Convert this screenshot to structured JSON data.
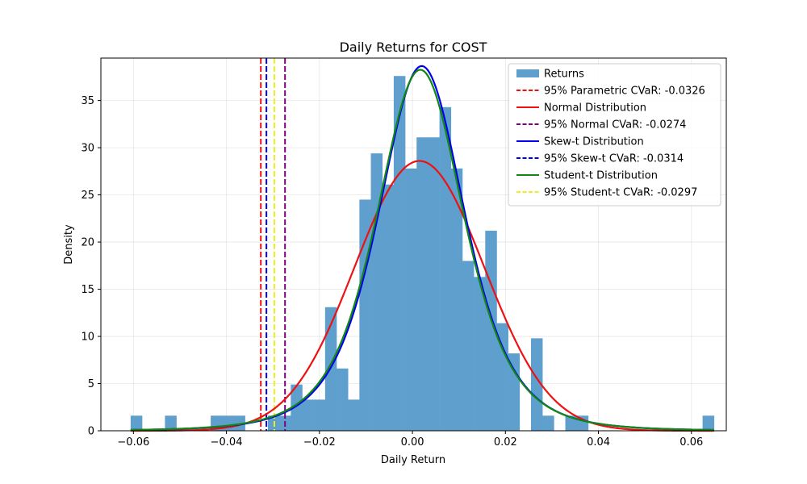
{
  "chart_data": {
    "type": "histogram",
    "title": "Daily Returns for COST",
    "xlabel": "Daily Return",
    "ylabel": "Density",
    "xlim": [
      -0.067,
      0.0675
    ],
    "ylim": [
      0,
      39.5
    ],
    "xticks": [
      -0.06,
      -0.04,
      -0.02,
      0.0,
      0.02,
      0.04,
      0.06
    ],
    "xtick_labels": [
      "−0.06",
      "−0.04",
      "−0.02",
      "0.00",
      "0.02",
      "0.04",
      "0.06"
    ],
    "yticks": [
      0,
      5,
      10,
      15,
      20,
      25,
      30,
      35
    ],
    "ytick_labels": [
      "0",
      "5",
      "10",
      "15",
      "20",
      "25",
      "30",
      "35"
    ],
    "grid": true,
    "legend_position": "top-right",
    "histogram": {
      "name": "Returns",
      "color": "#5f9fcd",
      "bin_start": -0.0606,
      "bin_width": 0.00246,
      "densities": [
        1.6,
        0,
        0,
        1.6,
        0,
        0,
        0,
        1.6,
        1.6,
        1.6,
        0,
        0,
        1.6,
        1.6,
        4.9,
        3.3,
        3.3,
        13.1,
        6.6,
        3.3,
        24.5,
        29.4,
        26.1,
        37.6,
        27.8,
        31.1,
        31.1,
        34.3,
        27.8,
        18.0,
        16.3,
        21.2,
        11.4,
        8.2,
        0,
        9.8,
        1.6,
        0,
        1.6,
        1.6,
        0,
        0,
        0,
        0,
        0,
        0,
        0,
        0,
        0,
        0,
        1.6
      ]
    },
    "distributions": [
      {
        "name": "Normal Distribution",
        "color": "#ee1111",
        "kind": "normal",
        "mu": 0.0015,
        "sigma": 0.01395
      },
      {
        "name": "Skew-t Distribution",
        "color": "#0000ee",
        "kind": "student-t",
        "mu": 0.002,
        "scale": 0.0097,
        "df": 4
      },
      {
        "name": "Student-t Distribution",
        "color": "#118811",
        "kind": "student-t",
        "mu": 0.0017,
        "scale": 0.0098,
        "df": 4
      }
    ],
    "cvar_lines": [
      {
        "name": "95% Parametric CVaR: -0.0326",
        "value": -0.0326,
        "color": "#ee1111"
      },
      {
        "name": "95% Normal CVaR: -0.0274",
        "value": -0.0274,
        "color": "#800080"
      },
      {
        "name": "95% Skew-t CVaR: -0.0314",
        "value": -0.0314,
        "color": "#0000ee"
      },
      {
        "name": "95% Student-t CVaR: -0.0297",
        "value": -0.0297,
        "color": "#eeee22"
      }
    ],
    "legend": [
      {
        "label": "Returns",
        "kind": "patch",
        "color": "#5f9fcd"
      },
      {
        "label": "95% Parametric CVaR: -0.0326",
        "kind": "dashed",
        "color": "#ee1111"
      },
      {
        "label": "Normal Distribution",
        "kind": "solid",
        "color": "#ee1111"
      },
      {
        "label": "95% Normal CVaR: -0.0274",
        "kind": "dashed",
        "color": "#800080"
      },
      {
        "label": "Skew-t Distribution",
        "kind": "solid",
        "color": "#0000ee"
      },
      {
        "label": "95% Skew-t CVaR: -0.0314",
        "kind": "dashed",
        "color": "#0000ee"
      },
      {
        "label": "Student-t Distribution",
        "kind": "solid",
        "color": "#118811"
      },
      {
        "label": "95% Student-t CVaR: -0.0297",
        "kind": "dashed",
        "color": "#eeee22"
      }
    ]
  }
}
